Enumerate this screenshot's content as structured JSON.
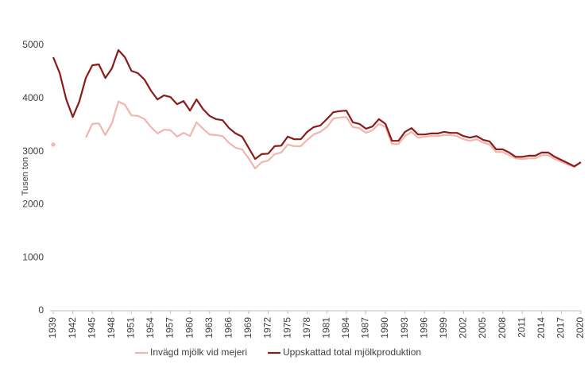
{
  "chart_data": {
    "type": "line",
    "ylabel": "Tusen ton",
    "x": [
      1939,
      1940,
      1941,
      1942,
      1943,
      1944,
      1945,
      1946,
      1947,
      1948,
      1949,
      1950,
      1951,
      1952,
      1953,
      1954,
      1955,
      1956,
      1957,
      1958,
      1959,
      1960,
      1961,
      1962,
      1963,
      1964,
      1965,
      1966,
      1967,
      1968,
      1969,
      1970,
      1971,
      1972,
      1973,
      1974,
      1975,
      1976,
      1977,
      1978,
      1979,
      1980,
      1981,
      1982,
      1983,
      1984,
      1985,
      1986,
      1987,
      1988,
      1989,
      1990,
      1991,
      1992,
      1993,
      1994,
      1995,
      1996,
      1997,
      1998,
      1999,
      2000,
      2001,
      2002,
      2003,
      2004,
      2005,
      2006,
      2007,
      2008,
      2009,
      2010,
      2011,
      2012,
      2013,
      2014,
      2015,
      2016,
      2017,
      2018,
      2019,
      2020
    ],
    "series": [
      {
        "name": "Invägd mjölk vid mejeri",
        "color": "#f0b5ac",
        "values": [
          3130,
          null,
          null,
          null,
          null,
          3260,
          3520,
          3530,
          3310,
          3530,
          3940,
          3880,
          3680,
          3670,
          3610,
          3460,
          3340,
          3410,
          3400,
          3280,
          3350,
          3290,
          3550,
          3430,
          3320,
          3310,
          3290,
          3160,
          3070,
          3040,
          2870,
          2680,
          2800,
          2830,
          2950,
          2980,
          3130,
          3100,
          3100,
          3220,
          3320,
          3370,
          3460,
          3620,
          3640,
          3650,
          3460,
          3440,
          3350,
          3400,
          3520,
          3460,
          3140,
          3140,
          3290,
          3370,
          3260,
          3280,
          3290,
          3290,
          3310,
          3310,
          3290,
          3230,
          3200,
          3230,
          3170,
          3130,
          2990,
          2990,
          2930,
          2870,
          2860,
          2870,
          2870,
          2930,
          2930,
          2860,
          2810,
          2750,
          2710,
          2790
        ]
      },
      {
        "name": "Uppskattad total mjölkproduktion",
        "color": "#8b1a1a",
        "values": [
          4775,
          4475,
          3980,
          3650,
          3940,
          4385,
          4625,
          4640,
          4385,
          4565,
          4910,
          4775,
          4520,
          4475,
          4355,
          4145,
          3980,
          4055,
          4025,
          3890,
          3950,
          3770,
          3980,
          3800,
          3670,
          3610,
          3590,
          3440,
          3340,
          3280,
          3070,
          2860,
          2950,
          2960,
          3100,
          3110,
          3280,
          3230,
          3230,
          3370,
          3460,
          3490,
          3610,
          3740,
          3760,
          3770,
          3550,
          3520,
          3430,
          3470,
          3610,
          3520,
          3200,
          3200,
          3370,
          3440,
          3320,
          3320,
          3340,
          3340,
          3370,
          3350,
          3350,
          3290,
          3260,
          3290,
          3220,
          3190,
          3040,
          3040,
          2980,
          2900,
          2900,
          2920,
          2920,
          2980,
          2980,
          2900,
          2840,
          2780,
          2720,
          2800
        ]
      }
    ],
    "xlim": [
      1939,
      2020
    ],
    "xticks": [
      1939,
      1942,
      1945,
      1948,
      1951,
      1954,
      1957,
      1960,
      1963,
      1966,
      1969,
      1972,
      1975,
      1978,
      1981,
      1984,
      1987,
      1990,
      1993,
      1996,
      1999,
      2002,
      2005,
      2008,
      2011,
      2014,
      2017,
      2020
    ],
    "ylim": [
      0,
      5000
    ],
    "yticks": [
      0,
      1000,
      2000,
      3000,
      4000,
      5000
    ],
    "legend": "bottom"
  }
}
